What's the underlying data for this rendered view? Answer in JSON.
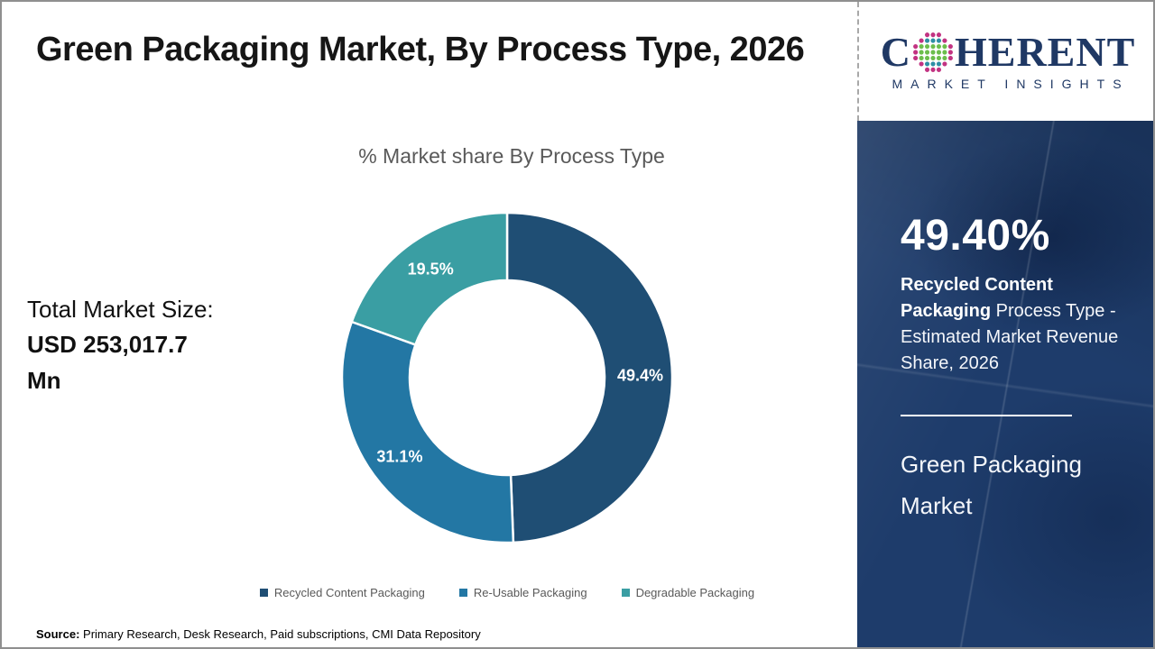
{
  "header": {
    "title": "Green Packaging Market, By Process Type, 2026"
  },
  "logo": {
    "part1": "C",
    "part2": "HERENT",
    "subtitle": "MARKET INSIGHTS",
    "globe_icon_colors": {
      "outer_ring": "#c23382",
      "mid": "#2e8fa5",
      "inner_band": "#6cbe4c"
    },
    "brand_color": "#1f3864"
  },
  "chart": {
    "title": "% Market share By Process Type"
  },
  "chart_data": {
    "type": "pie",
    "subtype": "donut",
    "title": "% Market share By Process Type",
    "categories": [
      "Recycled Content Packaging",
      "Re-Usable Packaging",
      "Degradable Packaging"
    ],
    "values": [
      49.4,
      31.1,
      19.5
    ],
    "data_labels": [
      "49.4%",
      "31.1%",
      "19.5%"
    ],
    "colors": [
      "#1f4e74",
      "#2377a4",
      "#3a9ea3"
    ],
    "start_angle_deg": 0,
    "direction": "clockwise",
    "inner_radius_ratio": 0.59,
    "legend_position": "bottom",
    "data_label_color": "#ffffff"
  },
  "left_panel": {
    "label": "Total Market Size:",
    "value_line1": "USD 253,017.7",
    "value_line2": "Mn"
  },
  "sidebar": {
    "stat_value": "49.40%",
    "stat_bold": "Recycled Content Packaging",
    "stat_rest": " Process Type - Estimated Market Revenue Share, 2026",
    "product": "Green Packaging Market",
    "background_color": "#1e3c6b"
  },
  "footer": {
    "source_label": "Source:",
    "source_text": " Primary Research, Desk Research, Paid subscriptions, CMI Data Repository"
  }
}
